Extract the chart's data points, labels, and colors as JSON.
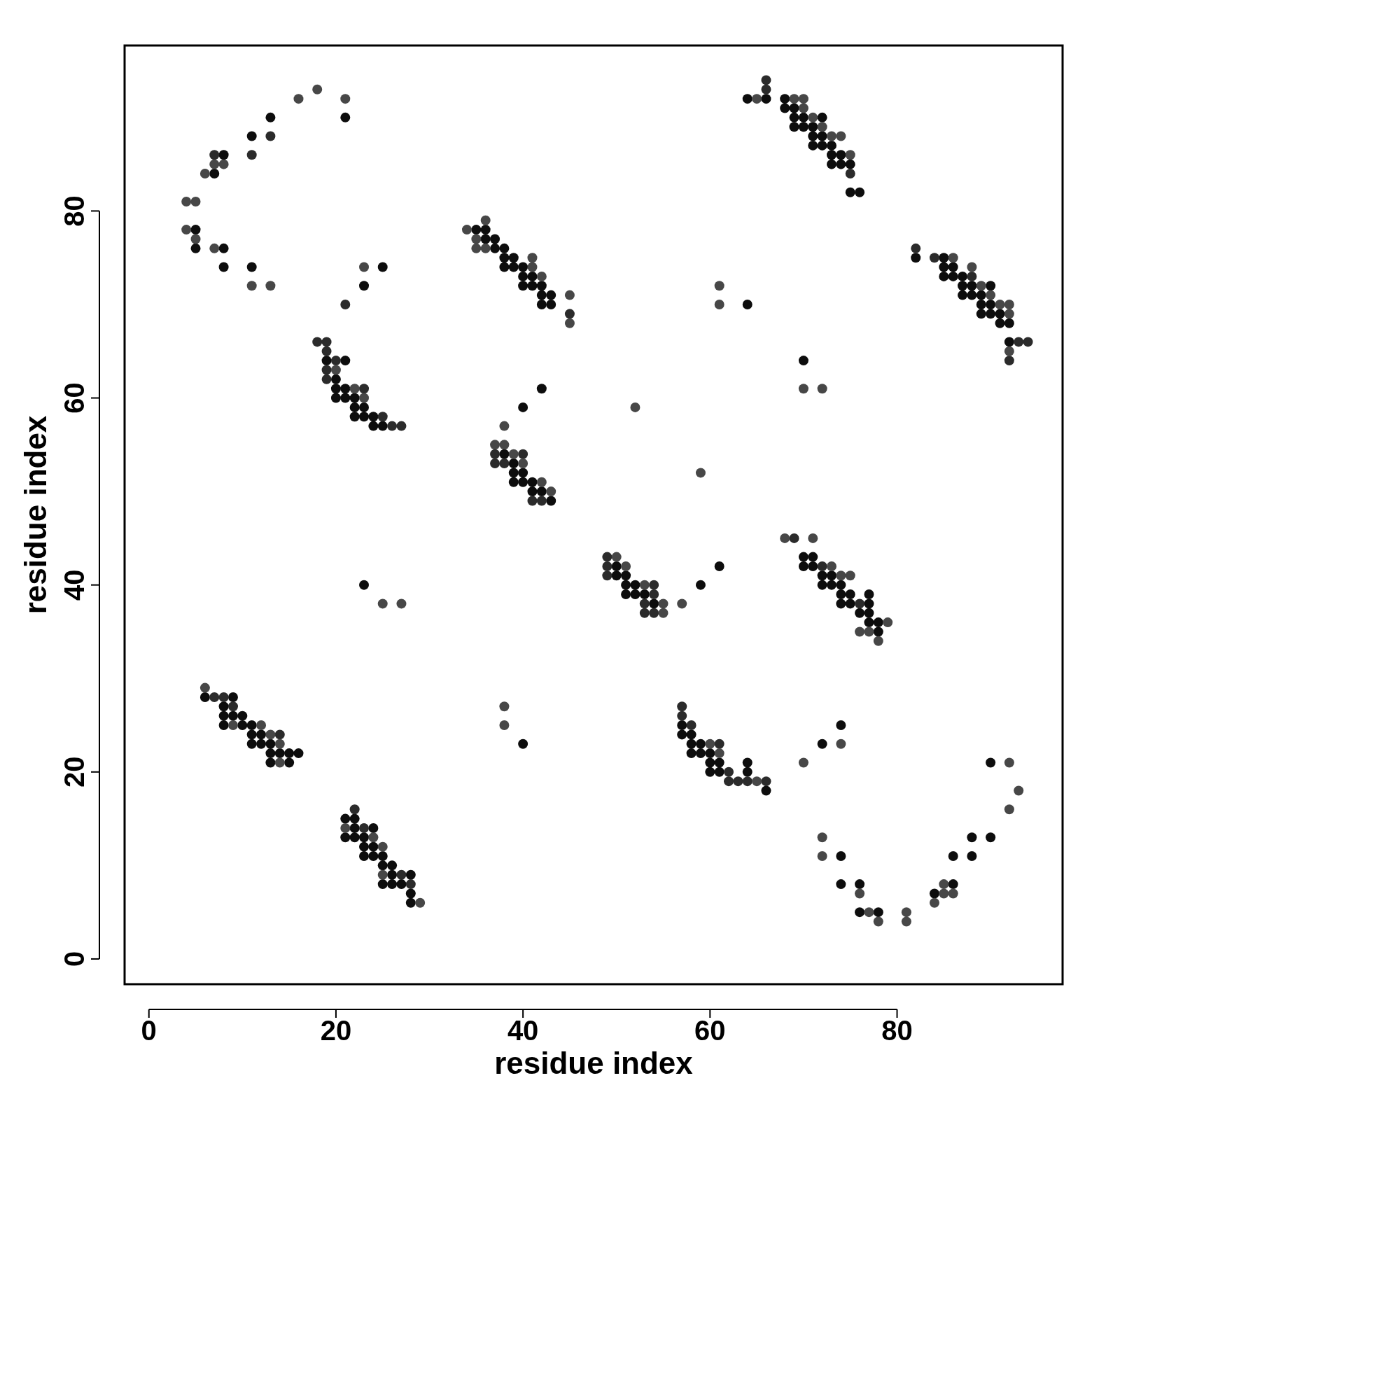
{
  "chart_data": {
    "type": "scatter",
    "xlabel": "residue index",
    "ylabel": "residue index",
    "xlim": [
      -2.6,
      97.7
    ],
    "ylim": [
      -2.7,
      97.7
    ],
    "xticks": [
      0,
      20,
      40,
      60,
      80
    ],
    "yticks": [
      0,
      20,
      40,
      60,
      80
    ],
    "marker": "circle",
    "series": [
      {
        "color": "#0d0d0d",
        "x": [
          5,
          5,
          8,
          8,
          11,
          7,
          8,
          11,
          13,
          21,
          23,
          25,
          35,
          36,
          36,
          37,
          37,
          38,
          38,
          39,
          38,
          39,
          40,
          40,
          41,
          40,
          41,
          42,
          42,
          43,
          42,
          43,
          64,
          64,
          66,
          68,
          68,
          69,
          69,
          70,
          72,
          69,
          70,
          71,
          71,
          72,
          71,
          72,
          73,
          73,
          74,
          73,
          74,
          75,
          75,
          76,
          70,
          82,
          85,
          85,
          86,
          85,
          86,
          87,
          87,
          88,
          90,
          87,
          88,
          89,
          89,
          90,
          89,
          90,
          91,
          91,
          92,
          92,
          19,
          21,
          20,
          20,
          21,
          20,
          21,
          22,
          22,
          23,
          22,
          23,
          24,
          24,
          25,
          23,
          42,
          40,
          38,
          39,
          39,
          40,
          39,
          40,
          41,
          41,
          42,
          43,
          50,
          50,
          51,
          51,
          52,
          51,
          52,
          53,
          54,
          59,
          61,
          70,
          71,
          70,
          71,
          72,
          73,
          72,
          73,
          74,
          74,
          75,
          77,
          74,
          75,
          77,
          76,
          77,
          77,
          78,
          78,
          6,
          9,
          8,
          8,
          9,
          10,
          8,
          10,
          11,
          11,
          12,
          11,
          12,
          13,
          13,
          14,
          15,
          16,
          13,
          15,
          22,
          21,
          22,
          24,
          21,
          22,
          23,
          23,
          24,
          23,
          24,
          25,
          25,
          26,
          26,
          28,
          25,
          26,
          27,
          28,
          28,
          40,
          57,
          57,
          58,
          58,
          59,
          58,
          59,
          60,
          60,
          61,
          64,
          60,
          61,
          64,
          74,
          72,
          90,
          74,
          74,
          76,
          76,
          78,
          84,
          86,
          86,
          88,
          88,
          90,
          66
        ],
        "values": [
          78,
          76,
          76,
          74,
          74,
          84,
          86,
          88,
          90,
          90,
          72,
          74,
          78,
          78,
          77,
          77,
          76,
          76,
          75,
          75,
          74,
          74,
          74,
          73,
          73,
          72,
          72,
          72,
          71,
          71,
          70,
          70,
          70,
          92,
          92,
          92,
          91,
          91,
          90,
          90,
          90,
          89,
          89,
          89,
          88,
          88,
          87,
          87,
          87,
          86,
          86,
          85,
          85,
          85,
          82,
          82,
          64,
          75,
          75,
          74,
          74,
          73,
          73,
          73,
          72,
          72,
          72,
          71,
          71,
          71,
          70,
          70,
          69,
          69,
          69,
          68,
          68,
          66,
          64,
          64,
          62,
          61,
          61,
          60,
          60,
          60,
          59,
          59,
          58,
          58,
          58,
          57,
          57,
          40,
          61,
          59,
          54,
          53,
          52,
          52,
          51,
          51,
          51,
          50,
          50,
          49,
          42,
          41,
          41,
          40,
          40,
          39,
          39,
          39,
          38,
          40,
          42,
          43,
          43,
          42,
          42,
          41,
          41,
          40,
          40,
          40,
          39,
          39,
          39,
          38,
          38,
          38,
          37,
          37,
          36,
          36,
          35,
          28,
          28,
          27,
          26,
          26,
          26,
          25,
          25,
          25,
          24,
          24,
          23,
          23,
          23,
          22,
          22,
          22,
          22,
          21,
          21,
          15,
          15,
          14,
          14,
          13,
          13,
          13,
          12,
          12,
          11,
          11,
          11,
          10,
          10,
          9,
          9,
          8,
          8,
          8,
          7,
          6,
          23,
          25,
          24,
          24,
          23,
          23,
          22,
          22,
          22,
          21,
          21,
          21,
          20,
          20,
          20,
          25,
          23,
          21,
          11,
          8,
          8,
          5,
          5,
          7,
          8,
          11,
          11,
          13,
          13,
          18
        ]
      },
      {
        "color": "#2b2b2b",
        "x": [
          13,
          7,
          11,
          21,
          18,
          19,
          19,
          20,
          19,
          19,
          23,
          25,
          26,
          27,
          45,
          66,
          66,
          92,
          82,
          84,
          93,
          94,
          88,
          75,
          37,
          40,
          37,
          38,
          41,
          42,
          49,
          49,
          49,
          54,
          54,
          53,
          53,
          54,
          69,
          72,
          76,
          7,
          8,
          9,
          14,
          22,
          23,
          27,
          28,
          57,
          57,
          58,
          61,
          62,
          62,
          63,
          64,
          66
        ],
        "values": [
          88,
          86,
          86,
          70,
          66,
          66,
          65,
          64,
          63,
          62,
          61,
          58,
          57,
          57,
          69,
          94,
          93,
          64,
          76,
          75,
          66,
          66,
          73,
          84,
          54,
          54,
          53,
          53,
          49,
          49,
          43,
          42,
          41,
          40,
          39,
          38,
          37,
          37,
          45,
          42,
          38,
          28,
          28,
          27,
          24,
          16,
          14,
          9,
          8,
          27,
          26,
          25,
          23,
          20,
          19,
          19,
          19,
          19
        ]
      },
      {
        "color": "#474747",
        "x": [
          4,
          5,
          4,
          5,
          7,
          11,
          13,
          6,
          7,
          8,
          16,
          18,
          21,
          23,
          34,
          36,
          35,
          35,
          36,
          41,
          41,
          42,
          45,
          45,
          61,
          61,
          65,
          69,
          70,
          70,
          71,
          72,
          73,
          74,
          75,
          86,
          88,
          89,
          90,
          91,
          92,
          92,
          92,
          20,
          22,
          23,
          52,
          38,
          37,
          38,
          39,
          40,
          42,
          43,
          59,
          50,
          51,
          53,
          55,
          55,
          57,
          68,
          71,
          73,
          74,
          75,
          79,
          76,
          77,
          78,
          70,
          72,
          25,
          27,
          6,
          9,
          12,
          13,
          14,
          14,
          21,
          24,
          25,
          25,
          29,
          38,
          38,
          60,
          61,
          65,
          74,
          70,
          92,
          93,
          92,
          72,
          72,
          76,
          77,
          78,
          81,
          81,
          84,
          85,
          85,
          86
        ],
        "values": [
          81,
          81,
          78,
          77,
          76,
          72,
          72,
          84,
          85,
          85,
          92,
          93,
          92,
          74,
          78,
          79,
          77,
          76,
          76,
          75,
          74,
          73,
          71,
          68,
          72,
          70,
          92,
          92,
          92,
          91,
          90,
          89,
          88,
          88,
          86,
          75,
          74,
          72,
          71,
          70,
          70,
          69,
          65,
          63,
          61,
          60,
          59,
          57,
          55,
          55,
          54,
          53,
          51,
          50,
          52,
          43,
          42,
          40,
          38,
          37,
          38,
          45,
          45,
          42,
          41,
          41,
          36,
          35,
          35,
          34,
          61,
          61,
          38,
          38,
          29,
          25,
          25,
          24,
          23,
          21,
          14,
          13,
          12,
          9,
          6,
          27,
          25,
          23,
          22,
          19,
          23,
          21,
          21,
          18,
          16,
          13,
          11,
          7,
          5,
          4,
          5,
          4,
          6,
          8,
          7,
          7
        ]
      }
    ]
  }
}
